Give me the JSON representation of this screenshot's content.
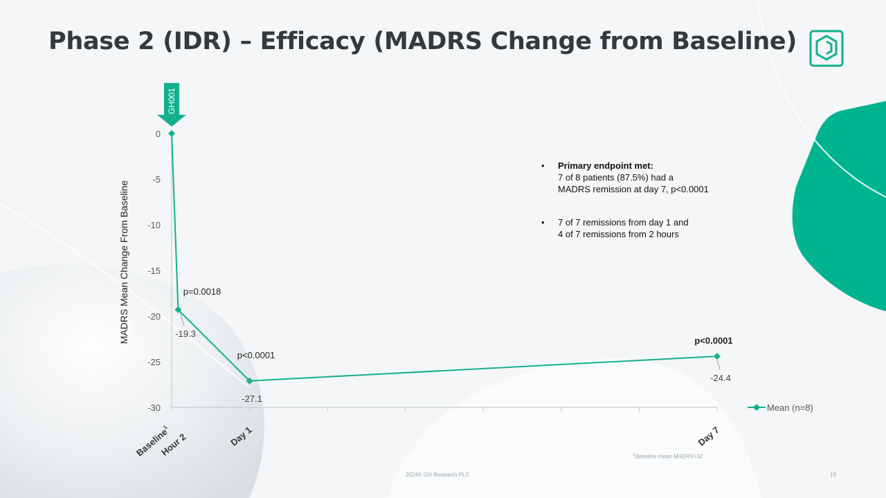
{
  "slide": {
    "title": "Phase 2 (IDR) – Efficacy (MADRS Change from Baseline)",
    "bullets": [
      {
        "heading": "Primary endpoint met:",
        "lines": [
          "7 of 8 patients (87.5%) had a",
          "MADRS remission at day 7, p<0.0001"
        ]
      },
      {
        "heading": "",
        "lines": [
          "7 of 7 remissions from day 1 and",
          "4 of 7 remissions from 2 hours"
        ]
      }
    ],
    "footnote_sup": "1",
    "footnote_text": "Baseline mean MADRS=32",
    "footer": "2024© GH Research PLC",
    "page_number": "19"
  },
  "colors": {
    "accent": "#12b08c",
    "title": "#333a3f",
    "axis": "#bfc6ca",
    "tick_text": "#595959",
    "shape_green": "#00b48f"
  },
  "chart_data": {
    "type": "line",
    "title": "",
    "xlabel": "",
    "ylabel": "MADRS Mean Change From Baseline",
    "ylim": [
      -30,
      0
    ],
    "yticks": [
      0,
      -5,
      -10,
      -15,
      -20,
      -25,
      -30
    ],
    "x_hours": [
      0,
      2,
      24,
      168
    ],
    "x_labels": [
      {
        "text": "Baseline",
        "sup": "1"
      },
      {
        "text": "Hour 2",
        "sup": ""
      },
      {
        "text": "Day 1",
        "sup": ""
      },
      {
        "text": "Day 7",
        "sup": ""
      }
    ],
    "series": [
      {
        "name": "Mean (n=8)",
        "values": [
          0,
          -19.3,
          -27.1,
          -24.4
        ]
      }
    ],
    "data_labels": [
      "",
      "-19.3",
      "-27.1",
      "-24.4"
    ],
    "p_values": [
      "",
      "p=0.0018",
      "p<0.0001",
      "p<0.0001"
    ],
    "dosing_marker": "GH001",
    "legend_position": "right",
    "grid": false
  }
}
